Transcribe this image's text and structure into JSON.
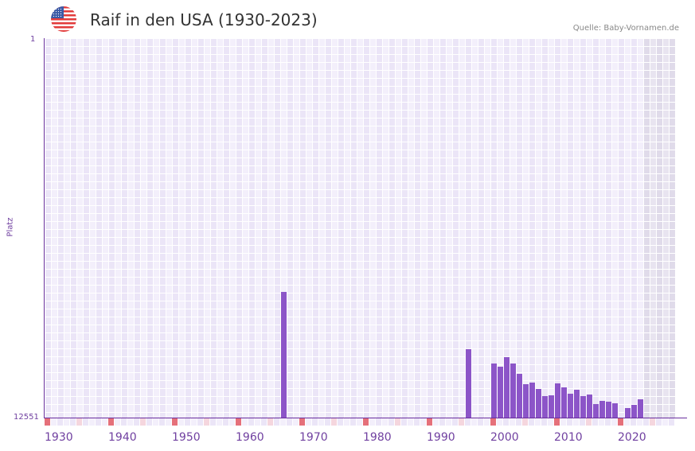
{
  "header": {
    "flag_icon": "us-flag-icon",
    "title": "Raif in den USA (1930-2023)",
    "source": "Quelle: Baby-Vornamen.de"
  },
  "colors": {
    "bar": "#8c55c8",
    "axis": "#6a2f9e",
    "grid_a": "#f3effb",
    "grid_b": "#ebe5f7",
    "future_a": "#e8e4f0",
    "future_b": "#e0dbea",
    "decade_marker": "#e5707a",
    "half_decade_marker": "#f5d6de",
    "label": "#7040a0"
  },
  "chart_data": {
    "type": "bar",
    "title": "Raif in den USA (1930-2023)",
    "xlabel": "",
    "ylabel": "Platz",
    "y_axis_inverted": true,
    "ylim": [
      12551,
      1
    ],
    "y_ticks": [
      "1",
      "12551"
    ],
    "x_range": [
      1930,
      2028
    ],
    "x_ticks": [
      "1930",
      "1940",
      "1950",
      "1960",
      "1970",
      "1980",
      "1990",
      "2000",
      "2010",
      "2020"
    ],
    "grid": true,
    "shaded_future_from": 2024,
    "series": [
      {
        "name": "Platz",
        "points": [
          {
            "year": 1967,
            "rank": 8394
          },
          {
            "year": 1996,
            "rank": 10288
          },
          {
            "year": 2000,
            "rank": 10762
          },
          {
            "year": 2001,
            "rank": 10867
          },
          {
            "year": 2002,
            "rank": 10551
          },
          {
            "year": 2003,
            "rank": 10762
          },
          {
            "year": 2004,
            "rank": 11104
          },
          {
            "year": 2005,
            "rank": 11446
          },
          {
            "year": 2006,
            "rank": 11393
          },
          {
            "year": 2007,
            "rank": 11604
          },
          {
            "year": 2008,
            "rank": 11841
          },
          {
            "year": 2009,
            "rank": 11815
          },
          {
            "year": 2010,
            "rank": 11420
          },
          {
            "year": 2011,
            "rank": 11551
          },
          {
            "year": 2012,
            "rank": 11762
          },
          {
            "year": 2013,
            "rank": 11630
          },
          {
            "year": 2014,
            "rank": 11841
          },
          {
            "year": 2015,
            "rank": 11788
          },
          {
            "year": 2016,
            "rank": 12104
          },
          {
            "year": 2017,
            "rank": 11998
          },
          {
            "year": 2018,
            "rank": 12025
          },
          {
            "year": 2019,
            "rank": 12077
          },
          {
            "year": 2021,
            "rank": 12235
          },
          {
            "year": 2022,
            "rank": 12130
          },
          {
            "year": 2023,
            "rank": 11946
          }
        ]
      }
    ]
  }
}
